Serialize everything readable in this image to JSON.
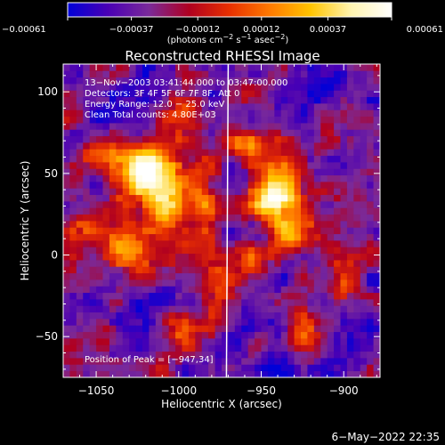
{
  "chart_data": {
    "type": "heatmap",
    "title": "Reconstructed RHESSI Image",
    "xlabel": "Heliocentric X (arcsec)",
    "ylabel": "Heliocentric Y (arcsec)",
    "xlim": [
      -1070,
      -878
    ],
    "ylim": [
      -75,
      117
    ],
    "x_ticks": [
      -1050,
      -1000,
      -950,
      -900
    ],
    "x_tick_labels": [
      "−1050",
      "−1000",
      "−950",
      "−900"
    ],
    "y_ticks": [
      -50,
      0,
      50,
      100
    ],
    "y_tick_labels": [
      "−50",
      "0",
      "50",
      "100"
    ],
    "colorbar": {
      "range": [
        -0.00061,
        0.00061
      ],
      "ticks": [
        -0.00061,
        -0.00037,
        -0.00012,
        0.00012,
        0.00037,
        0.00061
      ],
      "tick_labels": [
        "−0.00061",
        "−0.00037",
        "−0.00012",
        "0.00012",
        "0.00037",
        "0.00061"
      ],
      "unit_parts": [
        "(photons cm",
        "−2",
        " s",
        "−1",
        " asec",
        "−2",
        ")"
      ],
      "colors": [
        "#0000d8",
        "#4a00b4",
        "#7a2a9a",
        "#b00020",
        "#e83000",
        "#ff7a00",
        "#ffc400",
        "#fff4b0",
        "#ffffff"
      ]
    },
    "annotations": [
      "13−Nov−2003 03:41:44.000 to 03:47:00.000",
      "Detectors: 3F 4F 5F 6F 7F 8F, Att 0",
      "Energy Range: 12.0 − 25.0 keV",
      "Clean    Total counts: 4.80E+03"
    ],
    "peak_label": "Position of Peak = [−947,34]",
    "peak": [
      -947,
      34
    ],
    "limb_x": -970,
    "hotspots": [
      {
        "x": -1010,
        "y": 40,
        "sx": 16,
        "sy": 18,
        "amp": 0.00075
      },
      {
        "x": -1020,
        "y": 55,
        "sx": 9,
        "sy": 8,
        "amp": 0.00045
      },
      {
        "x": -1035,
        "y": 5,
        "sx": 10,
        "sy": 10,
        "amp": 0.00042
      },
      {
        "x": -1045,
        "y": 60,
        "sx": 12,
        "sy": 7,
        "amp": 0.00038
      },
      {
        "x": -995,
        "y": 95,
        "sx": 10,
        "sy": 9,
        "amp": 0.0004
      },
      {
        "x": -947,
        "y": 34,
        "sx": 10,
        "sy": 9,
        "amp": 0.00085
      },
      {
        "x": -935,
        "y": 45,
        "sx": 9,
        "sy": 12,
        "amp": 0.0005
      },
      {
        "x": -930,
        "y": 15,
        "sx": 9,
        "sy": 8,
        "amp": 0.00045
      },
      {
        "x": -955,
        "y": 0,
        "sx": 7,
        "sy": 8,
        "amp": 0.00035
      },
      {
        "x": -975,
        "y": -20,
        "sx": 8,
        "sy": 14,
        "amp": 0.00042
      },
      {
        "x": -1000,
        "y": -45,
        "sx": 7,
        "sy": 8,
        "amp": 0.00032
      },
      {
        "x": -990,
        "y": 5,
        "sx": 7,
        "sy": 9,
        "amp": 0.0003
      },
      {
        "x": -925,
        "y": -45,
        "sx": 9,
        "sy": 9,
        "amp": 0.00038
      },
      {
        "x": -900,
        "y": -20,
        "sx": 7,
        "sy": 12,
        "amp": 0.0003
      },
      {
        "x": -960,
        "y": 65,
        "sx": 8,
        "sy": 8,
        "amp": 0.00035
      },
      {
        "x": -1055,
        "y": 20,
        "sx": 6,
        "sy": 7,
        "amp": 0.00028
      },
      {
        "x": -1040,
        "y": -50,
        "sx": 6,
        "sy": 6,
        "amp": 0.00022
      },
      {
        "x": -985,
        "y": 40,
        "sx": 6,
        "sy": 10,
        "amp": 0.0003
      }
    ],
    "background_level": -0.00034,
    "pixel_size_arcsec": 4
  },
  "footer": {
    "timestamp": "6−May−2022 22:35"
  }
}
